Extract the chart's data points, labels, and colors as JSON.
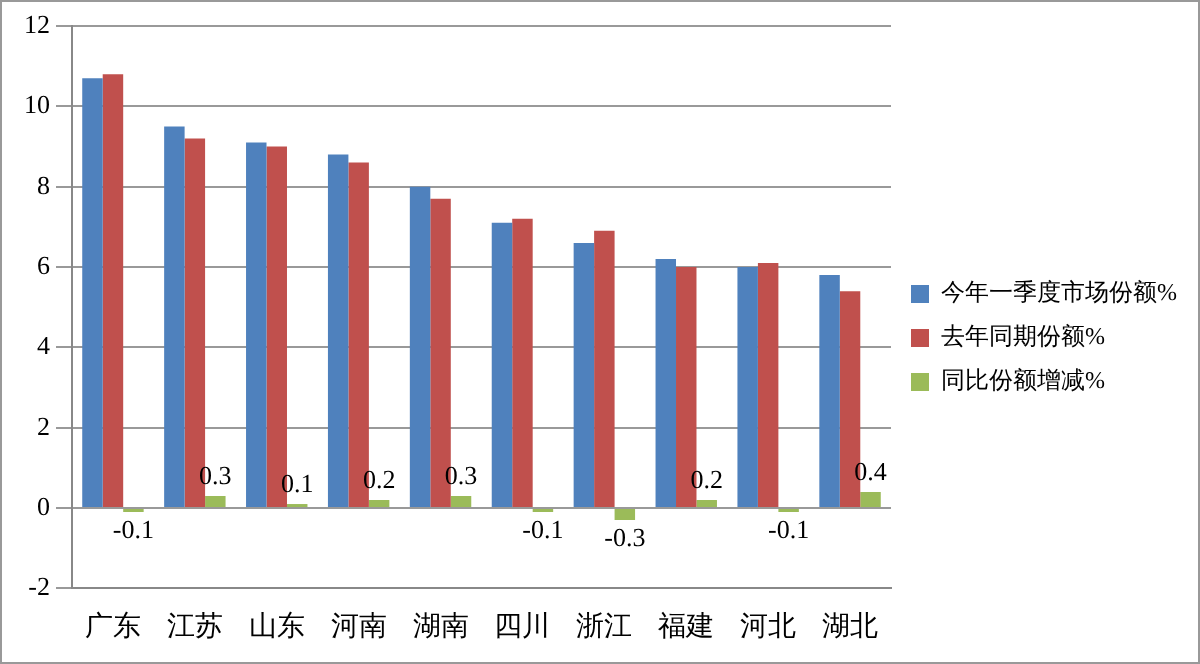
{
  "chart_data": {
    "type": "bar",
    "categories": [
      "广东",
      "江苏",
      "山东",
      "河南",
      "湖南",
      "四川",
      "浙江",
      "福建",
      "河北",
      "湖北"
    ],
    "series": [
      {
        "name": "今年一季度市场份额%",
        "color": "#4f81bd",
        "values": [
          10.7,
          9.5,
          9.1,
          8.8,
          8.0,
          7.1,
          6.6,
          6.2,
          6.0,
          5.8
        ]
      },
      {
        "name": "去年同期份额%",
        "color": "#c0504d",
        "values": [
          10.8,
          9.2,
          9.0,
          8.6,
          7.7,
          7.2,
          6.9,
          6.0,
          6.1,
          5.4
        ]
      },
      {
        "name": "同比份额增减%",
        "color": "#9bbb59",
        "values": [
          -0.1,
          0.3,
          0.1,
          0.2,
          0.3,
          -0.1,
          -0.3,
          0.2,
          -0.1,
          0.4
        ],
        "value_labels": [
          "-0.1",
          "0.3",
          "0.1",
          "0.2",
          "0.3",
          "-0.1",
          "-0.3",
          "0.2",
          "-0.1",
          "0.4"
        ]
      }
    ],
    "ylim": [
      -2,
      12
    ],
    "yticks": [
      -2,
      0,
      2,
      4,
      6,
      8,
      10,
      12
    ],
    "grid": "y",
    "legend": "right"
  }
}
